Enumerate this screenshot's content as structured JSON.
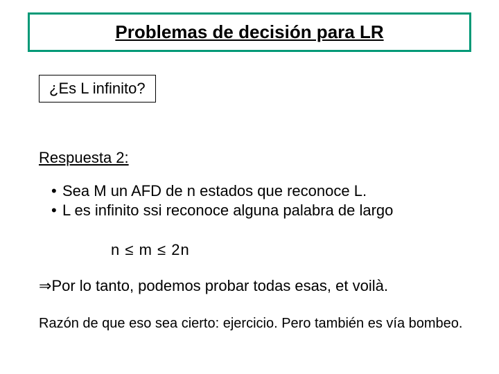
{
  "title": "Problemas de decisión para LR",
  "question": "¿Es L infinito?",
  "answer_label": "Respuesta 2:",
  "bullets": [
    "Sea M un AFD de n estados que reconoce L.",
    "L es infinito ssi reconoce alguna palabra de largo"
  ],
  "formula": {
    "left": "n",
    "le1": "≤",
    "mid": "m",
    "le2": "≤",
    "right": "2n"
  },
  "conclusion_arrow": "⇒",
  "conclusion": "Por lo tanto, podemos probar todas esas, et voilà.",
  "reason": "Razón de que eso sea cierto: ejercicio. Pero también es vía bombeo.",
  "colors": {
    "title_border": "#009977",
    "background": "#ffffff",
    "text": "#000000"
  },
  "fonts": {
    "main_family": "Comic Sans MS",
    "alt_family": "Arial",
    "title_size": 26,
    "body_size": 22,
    "reason_size": 20
  }
}
